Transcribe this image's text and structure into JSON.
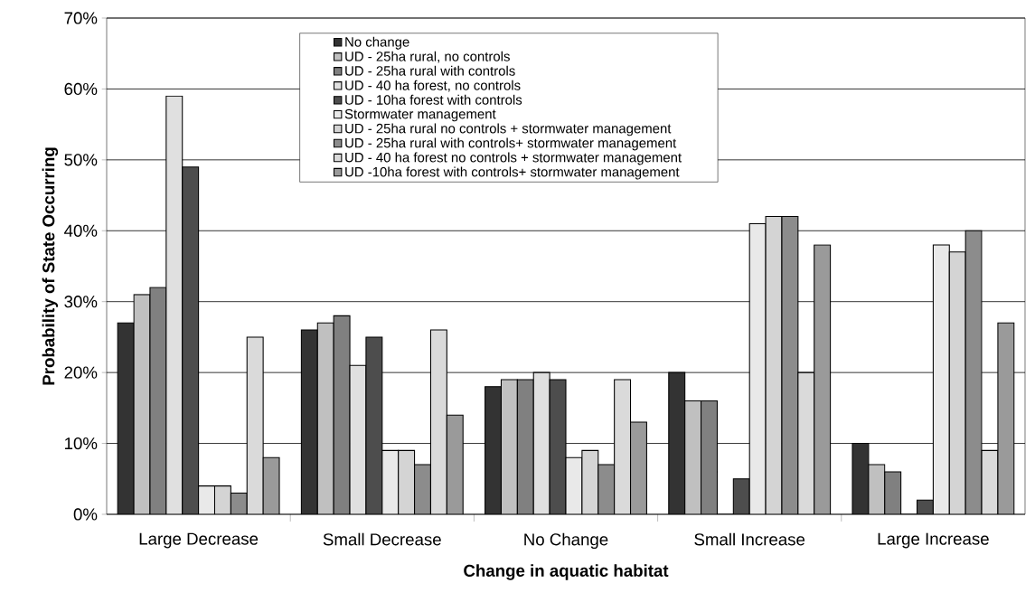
{
  "chart_data": {
    "type": "bar",
    "xlabel": "Change in aquatic habitat",
    "ylabel": "Probability of State Occurring",
    "categories": [
      "Large Decrease",
      "Small Decrease",
      "No Change",
      "Small Increase",
      "Large Increase"
    ],
    "series": [
      {
        "name": "No change",
        "color": "#333333",
        "values": [
          27,
          26,
          18,
          20,
          10
        ]
      },
      {
        "name": "UD - 25ha rural, no controls",
        "color": "#c0c0c0",
        "values": [
          31,
          27,
          19,
          16,
          7
        ]
      },
      {
        "name": "UD - 25ha rural with controls",
        "color": "#808080",
        "values": [
          32,
          28,
          19,
          16,
          6
        ]
      },
      {
        "name": "UD - 40 ha forest, no controls",
        "color": "#e0e0e0",
        "values": [
          59,
          21,
          20,
          0,
          0
        ]
      },
      {
        "name": "UD - 10ha forest with controls",
        "color": "#4d4d4d",
        "values": [
          49,
          25,
          19,
          5,
          2
        ]
      },
      {
        "name": "Stormwater management",
        "color": "#e9e9e9",
        "values": [
          4,
          9,
          8,
          41,
          38
        ]
      },
      {
        "name": "UD - 25ha rural no controls + stormwater management",
        "color": "#d4d4d4",
        "values": [
          4,
          9,
          9,
          42,
          37
        ]
      },
      {
        "name": "UD - 25ha rural with controls+ stormwater management",
        "color": "#8c8c8c",
        "values": [
          3,
          7,
          7,
          42,
          40
        ]
      },
      {
        "name": "UD - 40 ha forest no controls + stormwater management",
        "color": "#dadada",
        "values": [
          25,
          26,
          19,
          20,
          9
        ]
      },
      {
        "name": "UD -10ha forest with controls+ stormwater management",
        "color": "#9a9a9a",
        "values": [
          8,
          14,
          13,
          38,
          27
        ]
      }
    ],
    "ylim": [
      0,
      70
    ],
    "yticks": [
      {
        "value": 0,
        "label": "0%"
      },
      {
        "value": 10,
        "label": "10%"
      },
      {
        "value": 20,
        "label": "20%"
      },
      {
        "value": 30,
        "label": "30%"
      },
      {
        "value": 40,
        "label": "40%"
      },
      {
        "value": 50,
        "label": "50%"
      },
      {
        "value": 60,
        "label": "60%"
      },
      {
        "value": 70,
        "label": "70%"
      }
    ],
    "grid": "y",
    "legend": "top left"
  }
}
